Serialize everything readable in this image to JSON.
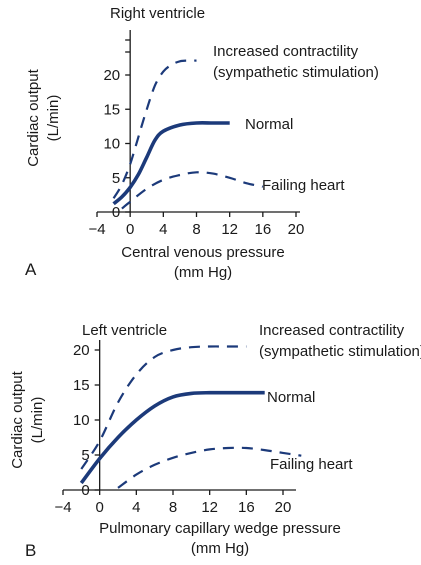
{
  "chart_data": [
    {
      "type": "line",
      "panel_label": "A",
      "title": "Right ventricle",
      "xlabel": [
        "Central venous pressure",
        "(mm Hg)"
      ],
      "ylabel": [
        "Cardiac output",
        "(L/min)"
      ],
      "xlim": [
        -4,
        24
      ],
      "ylim": [
        0,
        26
      ],
      "x_ticks": [
        -4,
        0,
        4,
        8,
        12,
        16,
        20
      ],
      "y_ticks": [
        0,
        5,
        10,
        15,
        20
      ],
      "grid": false,
      "colors": {
        "curve": "#1c3a7a"
      },
      "series": [
        {
          "name": [
            "Increased contractility",
            "(sympathetic stimulation)"
          ],
          "style": "dashed",
          "x": [
            -2,
            -1,
            0,
            1,
            2,
            3,
            4,
            5,
            6,
            7,
            8
          ],
          "y": [
            2,
            4,
            7,
            11,
            15,
            18.5,
            20.5,
            21.5,
            22,
            22.1,
            22.1
          ]
        },
        {
          "name": [
            "Normal"
          ],
          "style": "solid",
          "x": [
            -2,
            -1,
            0,
            1,
            2,
            3,
            4,
            6,
            8,
            10,
            12
          ],
          "y": [
            1.2,
            2.2,
            3.6,
            5.5,
            8,
            10.5,
            11.8,
            12.7,
            13,
            13,
            13
          ]
        },
        {
          "name": [
            "Failing heart"
          ],
          "style": "dashed",
          "x": [
            -1,
            0,
            2,
            4,
            6,
            8,
            10,
            12,
            14,
            16
          ],
          "y": [
            0.5,
            1.5,
            3.4,
            4.7,
            5.4,
            5.8,
            5.6,
            5,
            4.2,
            3.7
          ]
        }
      ]
    },
    {
      "type": "line",
      "panel_label": "B",
      "title": "Left ventricle",
      "xlabel": [
        "Pulmonary capillary wedge pressure",
        "(mm Hg)"
      ],
      "ylabel": [
        "Cardiac output",
        "(L/min)"
      ],
      "xlim": [
        -4,
        22
      ],
      "ylim": [
        0,
        21
      ],
      "x_ticks": [
        -4,
        0,
        4,
        8,
        12,
        16,
        20
      ],
      "y_ticks": [
        0,
        5,
        10,
        15,
        20
      ],
      "grid": false,
      "colors": {
        "curve": "#1c3a7a"
      },
      "series": [
        {
          "name": [
            "Increased contractility",
            "(sympathetic stimulation)"
          ],
          "style": "dashed",
          "x": [
            -2,
            0,
            2,
            4,
            6,
            8,
            10,
            12,
            14,
            16
          ],
          "y": [
            3,
            7,
            12.5,
            16.5,
            19,
            20,
            20.4,
            20.5,
            20.5,
            20.5
          ]
        },
        {
          "name": [
            "Normal"
          ],
          "style": "solid",
          "x": [
            -2,
            0,
            2,
            4,
            6,
            8,
            10,
            12,
            14,
            16,
            18
          ],
          "y": [
            1,
            4.5,
            7.5,
            10,
            12,
            13.3,
            13.8,
            13.9,
            13.9,
            13.9,
            13.9
          ]
        },
        {
          "name": [
            "Failing heart"
          ],
          "style": "dashed",
          "x": [
            2,
            4,
            6,
            8,
            10,
            12,
            14,
            16,
            18,
            20,
            22
          ],
          "y": [
            0.3,
            2.2,
            3.6,
            4.6,
            5.3,
            5.8,
            6,
            6,
            5.7,
            5.3,
            4.9
          ]
        }
      ]
    }
  ]
}
